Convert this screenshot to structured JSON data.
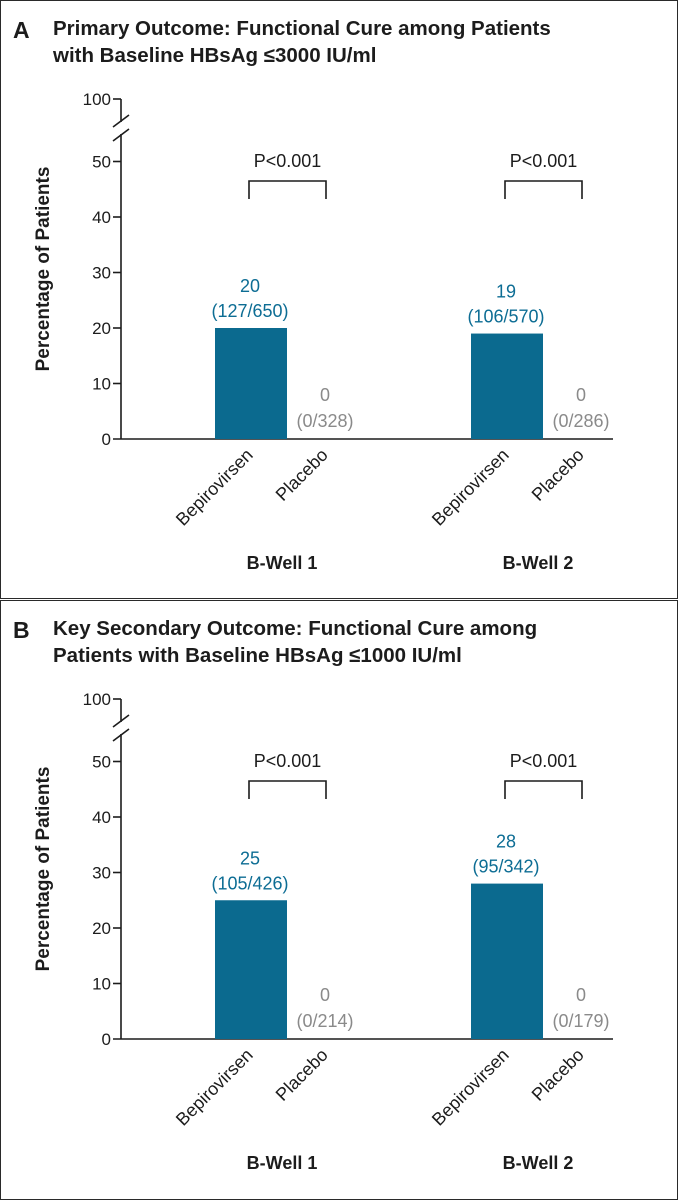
{
  "chart_data": [
    {
      "panel": "A",
      "type": "bar",
      "title_line1": "Primary Outcome: Functional Cure among Patients",
      "title_line2": "with Baseline HBsAg ≤3000 IU/ml",
      "ylabel": "Percentage of Patients",
      "xlabel": "",
      "ylim": [
        0,
        50
      ],
      "y_break_top_label": "100",
      "yticks": [
        "0",
        "10",
        "20",
        "30",
        "40",
        "50"
      ],
      "grid": false,
      "groups": [
        {
          "name": "B-Well 1",
          "pvalue": "P<0.001",
          "bars": [
            {
              "category": "Bepirovirsen",
              "value": 20,
              "value_label": "20",
              "count_label": "(127/650)"
            },
            {
              "category": "Placebo",
              "value": 0,
              "value_label": "0",
              "count_label": "(0/328)"
            }
          ]
        },
        {
          "name": "B-Well 2",
          "pvalue": "P<0.001",
          "bars": [
            {
              "category": "Bepirovirsen",
              "value": 19,
              "value_label": "19",
              "count_label": "(106/570)"
            },
            {
              "category": "Placebo",
              "value": 0,
              "value_label": "0",
              "count_label": "(0/286)"
            }
          ]
        }
      ]
    },
    {
      "panel": "B",
      "type": "bar",
      "title_line1": "Key Secondary Outcome: Functional Cure among",
      "title_line2": "Patients with Baseline HBsAg ≤1000 IU/ml",
      "ylabel": "Percentage of Patients",
      "xlabel": "",
      "ylim": [
        0,
        50
      ],
      "y_break_top_label": "100",
      "yticks": [
        "0",
        "10",
        "20",
        "30",
        "40",
        "50"
      ],
      "grid": false,
      "groups": [
        {
          "name": "B-Well 1",
          "pvalue": "P<0.001",
          "bars": [
            {
              "category": "Bepirovirsen",
              "value": 25,
              "value_label": "25",
              "count_label": "(105/426)"
            },
            {
              "category": "Placebo",
              "value": 0,
              "value_label": "0",
              "count_label": "(0/214)"
            }
          ]
        },
        {
          "name": "B-Well 2",
          "pvalue": "P<0.001",
          "bars": [
            {
              "category": "Bepirovirsen",
              "value": 28,
              "value_label": "28",
              "count_label": "(95/342)"
            },
            {
              "category": "Placebo",
              "value": 0,
              "value_label": "0",
              "count_label": "(0/179)"
            }
          ]
        }
      ]
    }
  ],
  "colors": {
    "treatment_bar": "#0b6a8f",
    "treatment_label": "#0d6d94",
    "placebo_label": "#8a8a8a",
    "axis": "#1c1c1c"
  }
}
